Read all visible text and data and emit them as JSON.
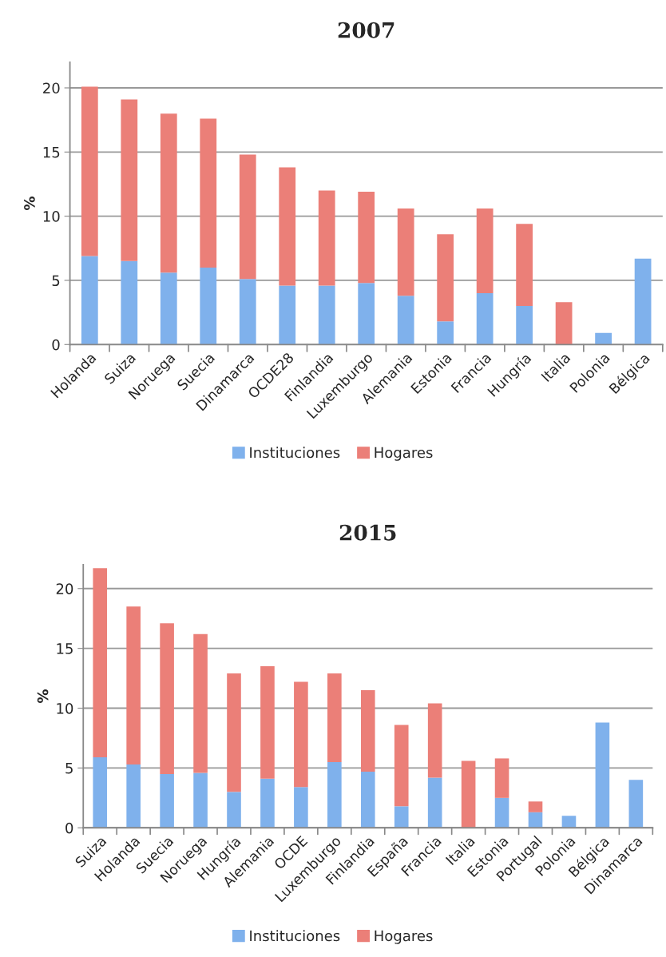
{
  "chart_data": [
    {
      "type": "bar",
      "title": "2007",
      "ylabel": "%",
      "stacked": true,
      "grid": "y",
      "legend": "bottom",
      "categories": [
        "Holanda",
        "Suiza",
        "Noruega",
        "Suecia",
        "Dinamarca",
        "OCDE28",
        "Finlandia",
        "Luxemburgo",
        "Alemania",
        "Estonia",
        "Francia",
        "Hungría",
        "Italia",
        "Polonia",
        "Bélgica"
      ],
      "series": [
        {
          "name": "Instituciones",
          "color": "#7fb1ec",
          "values": [
            6.9,
            6.5,
            5.6,
            6.0,
            5.1,
            4.6,
            4.6,
            4.8,
            3.8,
            1.8,
            4.0,
            3.0,
            0,
            0.9,
            6.7
          ]
        },
        {
          "name": "Hogares",
          "color": "#eb7f78",
          "values": [
            13.2,
            12.6,
            12.4,
            11.6,
            9.7,
            9.2,
            7.4,
            7.1,
            6.8,
            6.8,
            6.6,
            6.4,
            3.3,
            0,
            0
          ]
        }
      ],
      "ylim": [
        0,
        22
      ],
      "yticks": [
        0,
        5,
        10,
        15,
        20
      ]
    },
    {
      "type": "bar",
      "title": "2015",
      "ylabel": "%",
      "stacked": true,
      "grid": "y",
      "legend": "bottom",
      "categories": [
        "Suiza",
        "Holanda",
        "Suecia",
        "Noruega",
        "Hungría",
        "Alemania",
        "OCDE",
        "Luxemburgo",
        "Finlandia",
        "España",
        "Francia",
        "Italia",
        "Estonia",
        "Portugal",
        "Polonia",
        "Bélgica",
        "Dinamarca"
      ],
      "series": [
        {
          "name": "Instituciones",
          "color": "#7fb1ec",
          "values": [
            5.9,
            5.3,
            4.5,
            4.6,
            3.0,
            4.1,
            3.4,
            5.5,
            4.7,
            1.8,
            4.2,
            0,
            2.5,
            1.3,
            1.0,
            8.8,
            4.0
          ]
        },
        {
          "name": "Hogares",
          "color": "#eb7f78",
          "values": [
            15.8,
            13.2,
            12.6,
            11.6,
            9.9,
            9.4,
            8.8,
            7.4,
            6.8,
            6.8,
            6.2,
            5.6,
            3.3,
            0.9,
            0,
            0,
            0
          ]
        }
      ],
      "ylim": [
        0,
        22
      ],
      "yticks": [
        0,
        5,
        10,
        15,
        20
      ]
    }
  ]
}
